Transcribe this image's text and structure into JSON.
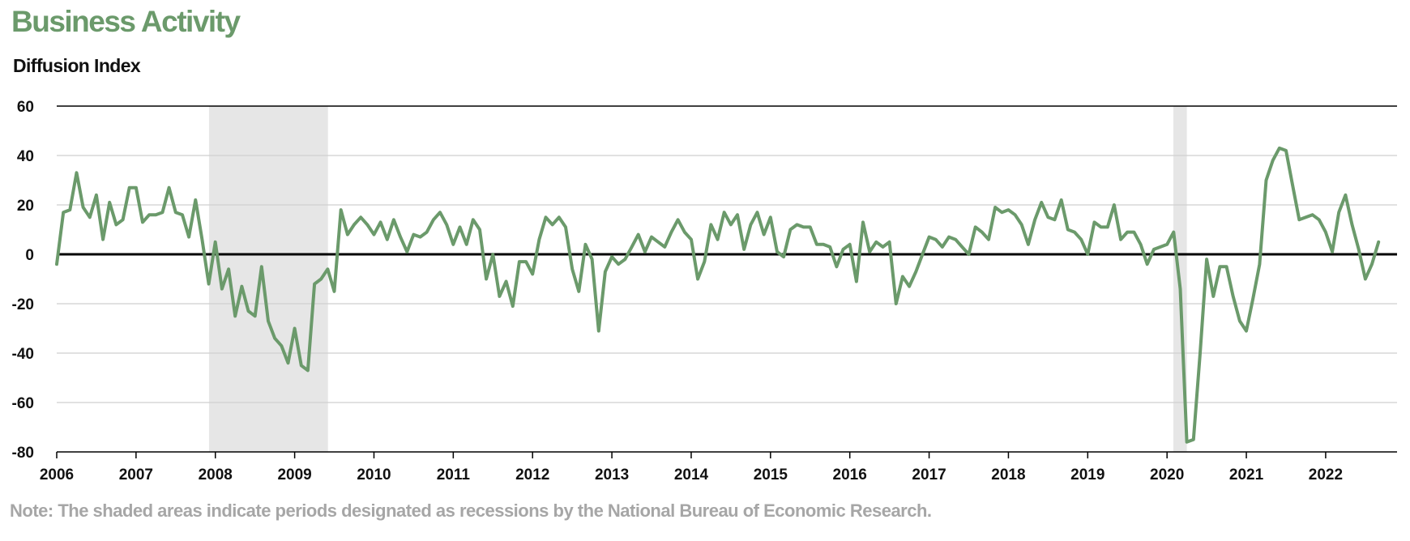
{
  "chart_data": {
    "type": "line",
    "title": "Business Activity",
    "ylabel": "Diffusion Index",
    "note": "Note: The shaded areas indicate periods designated as recessions by the National Bureau of Economic Research.",
    "ylim": [
      -80,
      60
    ],
    "yticks": [
      "60",
      "40",
      "20",
      "0",
      "-20",
      "-40",
      "-60",
      "-80"
    ],
    "yticks_values": [
      60,
      40,
      20,
      0,
      -20,
      -40,
      -60,
      -80
    ],
    "xticks": [
      "2006",
      "2007",
      "2008",
      "2009",
      "2010",
      "2011",
      "2012",
      "2013",
      "2014",
      "2015",
      "2016",
      "2017",
      "2018",
      "2019",
      "2020",
      "2021",
      "2022"
    ],
    "xlim": [
      2006.0,
      2022.9
    ],
    "grid": true,
    "line_color": "#6b9a6b",
    "recession_color": "#e6e6e6",
    "recessions": [
      [
        2007.92,
        2009.42
      ],
      [
        2020.08,
        2020.25
      ]
    ],
    "series": [
      {
        "start": "2006-01",
        "frequency": "monthly",
        "values": [
          -4,
          17,
          18,
          33,
          19,
          15,
          24,
          6,
          21,
          12,
          14,
          27,
          27,
          13,
          16,
          16,
          17,
          27,
          17,
          16,
          7,
          22,
          6,
          -12,
          5,
          -14,
          -6,
          -25,
          -13,
          -23,
          -25,
          -5,
          -27,
          -34,
          -37,
          -44,
          -30,
          -45,
          -47,
          -12,
          -10,
          -6,
          -15,
          18,
          8,
          12,
          15,
          12,
          8,
          13,
          6,
          14,
          7,
          1,
          8,
          7,
          9,
          14,
          17,
          12,
          4,
          11,
          4,
          14,
          10,
          -10,
          0,
          -17,
          -11,
          -21,
          -3,
          -3,
          -8,
          6,
          15,
          12,
          15,
          11,
          -6,
          -15,
          4,
          -2,
          -31,
          -7,
          -1,
          -4,
          -2,
          3,
          8,
          1,
          7,
          5,
          3,
          9,
          14,
          9,
          6,
          -10,
          -3,
          12,
          6,
          17,
          12,
          16,
          2,
          12,
          17,
          8,
          15,
          1,
          -1,
          10,
          12,
          11,
          11,
          4,
          4,
          3,
          -5,
          2,
          4,
          -11,
          13,
          1,
          5,
          3,
          5,
          -20,
          -9,
          -13,
          -7,
          0,
          7,
          6,
          3,
          7,
          6,
          3,
          0,
          11,
          9,
          6,
          19,
          17,
          18,
          16,
          12,
          4,
          14,
          21,
          15,
          14,
          22,
          10,
          9,
          6,
          0,
          13,
          11,
          11,
          20,
          6,
          9,
          9,
          4,
          -4,
          2,
          3,
          4,
          9,
          -14,
          -76,
          -75,
          -40,
          -2,
          -17,
          -5,
          -5,
          -17,
          -27,
          -31,
          -18,
          -4,
          30,
          38,
          43,
          42,
          28,
          14,
          15,
          16,
          14,
          9,
          1,
          17,
          24,
          12,
          2,
          -10,
          -4,
          5
        ]
      }
    ]
  }
}
